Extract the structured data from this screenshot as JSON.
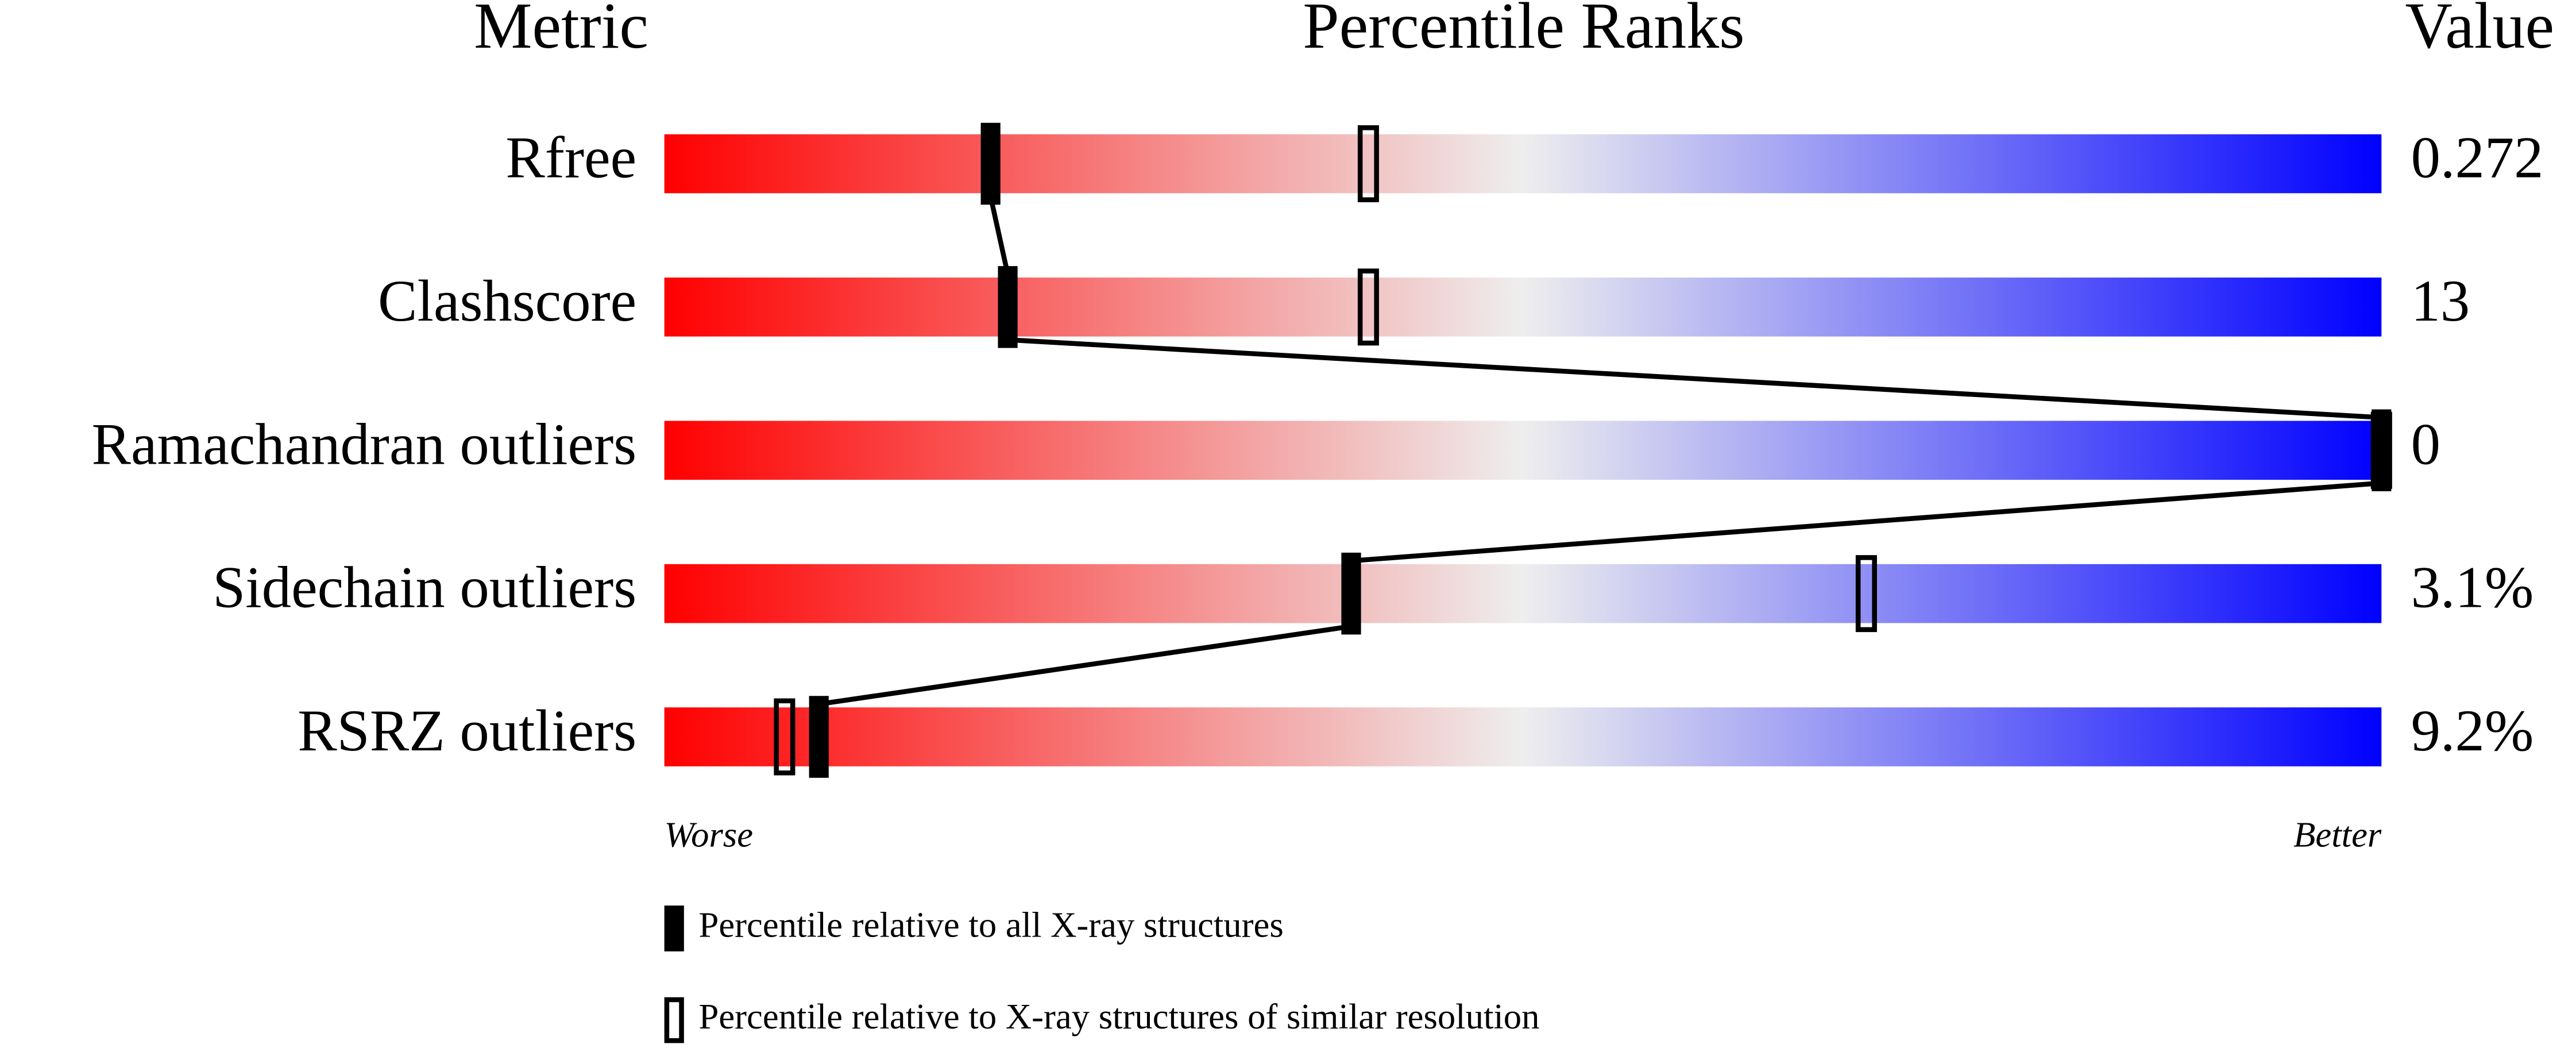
{
  "chart_data": {
    "type": "percentile-ranks",
    "headers": [
      "Metric",
      "Percentile Ranks",
      "Value"
    ],
    "categories": [
      "Rfree",
      "Clashscore",
      "Ramachandran outliers",
      "Sidechain outliers",
      "RSRZ outliers"
    ],
    "metric_values": [
      "0.272",
      "13",
      "0",
      "3.1%",
      "9.2%"
    ],
    "xlim": [
      0,
      100
    ],
    "axis_labels": [
      "Worse",
      "Better"
    ],
    "gradient": [
      "#ff0000",
      "#eeeeee",
      "#0000ff"
    ],
    "series": [
      {
        "name": "Percentile relative to all X-ray structures",
        "color": "#000000",
        "fill": true,
        "values": [
          19,
          20,
          100,
          40,
          9
        ]
      },
      {
        "name": "Percentile relative to X-ray structures of similar resolution",
        "color": "#000000",
        "fill": false,
        "values": [
          41,
          41,
          100,
          70,
          7
        ]
      }
    ]
  }
}
